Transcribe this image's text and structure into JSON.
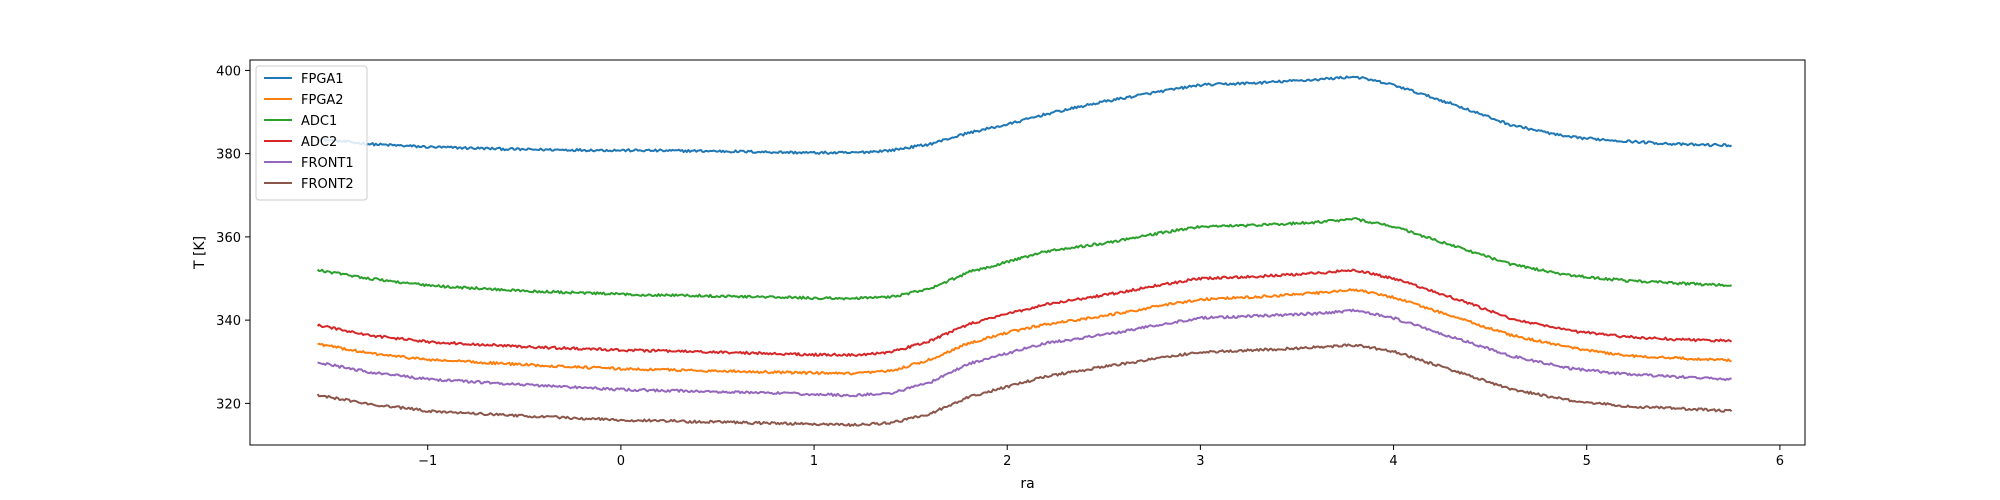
{
  "chart_data": {
    "type": "line",
    "title": "",
    "xlabel": "ra",
    "ylabel": "T [K]",
    "xlim": [
      -1.92,
      6.13
    ],
    "ylim": [
      310,
      402.5
    ],
    "xticks": [
      -1,
      0,
      1,
      2,
      3,
      4,
      5,
      6
    ],
    "yticks": [
      320,
      340,
      360,
      380,
      400
    ],
    "grid": false,
    "legend_position": "top-left",
    "series": [
      {
        "name": "FPGA1",
        "color": "#1f77b4",
        "points": [
          [
            -1.57,
            383.5
          ],
          [
            -1.3,
            382.3
          ],
          [
            -1.0,
            381.6
          ],
          [
            -0.5,
            381.0
          ],
          [
            0.0,
            380.8
          ],
          [
            0.5,
            380.6
          ],
          [
            1.0,
            380.2
          ],
          [
            1.2,
            380.2
          ],
          [
            1.4,
            380.8
          ],
          [
            1.6,
            382.3
          ],
          [
            1.8,
            385.0
          ],
          [
            2.0,
            387.0
          ],
          [
            2.2,
            389.5
          ],
          [
            2.5,
            392.5
          ],
          [
            2.8,
            395.0
          ],
          [
            3.0,
            396.5
          ],
          [
            3.3,
            397.0
          ],
          [
            3.6,
            397.8
          ],
          [
            3.8,
            398.5
          ],
          [
            4.0,
            396.5
          ],
          [
            4.3,
            392.0
          ],
          [
            4.6,
            387.0
          ],
          [
            4.9,
            384.0
          ],
          [
            5.2,
            383.0
          ],
          [
            5.5,
            382.2
          ],
          [
            5.75,
            382.0
          ]
        ]
      },
      {
        "name": "FPGA2",
        "color": "#ff7f0e",
        "points": [
          [
            -1.57,
            334.3
          ],
          [
            -1.3,
            332.0
          ],
          [
            -1.0,
            330.5
          ],
          [
            -0.5,
            329.3
          ],
          [
            0.0,
            328.3
          ],
          [
            0.5,
            327.8
          ],
          [
            1.0,
            327.3
          ],
          [
            1.2,
            327.1
          ],
          [
            1.4,
            327.8
          ],
          [
            1.6,
            330.5
          ],
          [
            1.8,
            334.5
          ],
          [
            2.0,
            337.0
          ],
          [
            2.2,
            339.0
          ],
          [
            2.5,
            341.0
          ],
          [
            2.8,
            343.5
          ],
          [
            3.0,
            345.0
          ],
          [
            3.3,
            345.6
          ],
          [
            3.6,
            346.5
          ],
          [
            3.8,
            347.3
          ],
          [
            4.0,
            345.5
          ],
          [
            4.3,
            341.0
          ],
          [
            4.6,
            336.5
          ],
          [
            4.9,
            333.5
          ],
          [
            5.2,
            331.5
          ],
          [
            5.5,
            330.8
          ],
          [
            5.75,
            330.3
          ]
        ]
      },
      {
        "name": "ADC1",
        "color": "#2ca02c",
        "points": [
          [
            -1.57,
            352.0
          ],
          [
            -1.3,
            350.0
          ],
          [
            -1.0,
            348.3
          ],
          [
            -0.5,
            347.0
          ],
          [
            0.0,
            346.2
          ],
          [
            0.5,
            345.8
          ],
          [
            1.0,
            345.3
          ],
          [
            1.2,
            345.2
          ],
          [
            1.4,
            345.6
          ],
          [
            1.6,
            347.5
          ],
          [
            1.8,
            351.5
          ],
          [
            2.0,
            354.0
          ],
          [
            2.2,
            356.5
          ],
          [
            2.5,
            358.5
          ],
          [
            2.8,
            361.0
          ],
          [
            3.0,
            362.5
          ],
          [
            3.3,
            362.8
          ],
          [
            3.6,
            363.5
          ],
          [
            3.8,
            364.3
          ],
          [
            4.0,
            362.5
          ],
          [
            4.3,
            358.0
          ],
          [
            4.6,
            353.5
          ],
          [
            4.9,
            350.8
          ],
          [
            5.2,
            349.5
          ],
          [
            5.5,
            348.8
          ],
          [
            5.75,
            348.3
          ]
        ]
      },
      {
        "name": "ADC2",
        "color": "#d62728",
        "points": [
          [
            -1.57,
            338.8
          ],
          [
            -1.3,
            336.3
          ],
          [
            -1.0,
            334.8
          ],
          [
            -0.5,
            333.6
          ],
          [
            0.0,
            332.8
          ],
          [
            0.5,
            332.3
          ],
          [
            1.0,
            331.7
          ],
          [
            1.2,
            331.6
          ],
          [
            1.4,
            332.3
          ],
          [
            1.6,
            335.0
          ],
          [
            1.8,
            339.0
          ],
          [
            2.0,
            341.5
          ],
          [
            2.2,
            343.8
          ],
          [
            2.5,
            346.0
          ],
          [
            2.8,
            348.5
          ],
          [
            3.0,
            350.0
          ],
          [
            3.3,
            350.5
          ],
          [
            3.6,
            351.3
          ],
          [
            3.8,
            352.0
          ],
          [
            4.0,
            350.0
          ],
          [
            4.3,
            345.5
          ],
          [
            4.6,
            340.5
          ],
          [
            4.9,
            337.5
          ],
          [
            5.2,
            336.0
          ],
          [
            5.5,
            335.3
          ],
          [
            5.75,
            335.0
          ]
        ]
      },
      {
        "name": "FRONT1",
        "color": "#9467bd",
        "points": [
          [
            -1.57,
            329.8
          ],
          [
            -1.3,
            327.5
          ],
          [
            -1.0,
            325.8
          ],
          [
            -0.5,
            324.5
          ],
          [
            0.0,
            323.3
          ],
          [
            0.5,
            322.8
          ],
          [
            1.0,
            322.2
          ],
          [
            1.2,
            321.9
          ],
          [
            1.4,
            322.5
          ],
          [
            1.6,
            325.0
          ],
          [
            1.8,
            329.5
          ],
          [
            2.0,
            332.0
          ],
          [
            2.2,
            334.5
          ],
          [
            2.5,
            336.5
          ],
          [
            2.8,
            339.0
          ],
          [
            3.0,
            340.5
          ],
          [
            3.3,
            341.0
          ],
          [
            3.6,
            341.6
          ],
          [
            3.8,
            342.3
          ],
          [
            4.0,
            340.5
          ],
          [
            4.3,
            336.0
          ],
          [
            4.6,
            331.5
          ],
          [
            4.9,
            328.5
          ],
          [
            5.2,
            327.0
          ],
          [
            5.5,
            326.3
          ],
          [
            5.75,
            325.8
          ]
        ]
      },
      {
        "name": "FRONT2",
        "color": "#8c564b",
        "points": [
          [
            -1.57,
            322.0
          ],
          [
            -1.3,
            319.8
          ],
          [
            -1.0,
            318.2
          ],
          [
            -0.5,
            317.0
          ],
          [
            0.0,
            316.0
          ],
          [
            0.5,
            315.5
          ],
          [
            1.0,
            315.0
          ],
          [
            1.2,
            314.8
          ],
          [
            1.4,
            315.3
          ],
          [
            1.6,
            317.5
          ],
          [
            1.8,
            321.5
          ],
          [
            2.0,
            324.0
          ],
          [
            2.2,
            326.5
          ],
          [
            2.5,
            328.8
          ],
          [
            2.8,
            331.0
          ],
          [
            3.0,
            332.3
          ],
          [
            3.3,
            332.8
          ],
          [
            3.6,
            333.5
          ],
          [
            3.8,
            334.0
          ],
          [
            4.0,
            332.5
          ],
          [
            4.3,
            328.0
          ],
          [
            4.6,
            323.5
          ],
          [
            4.9,
            320.8
          ],
          [
            5.2,
            319.3
          ],
          [
            5.5,
            318.7
          ],
          [
            5.75,
            318.2
          ]
        ]
      }
    ]
  }
}
